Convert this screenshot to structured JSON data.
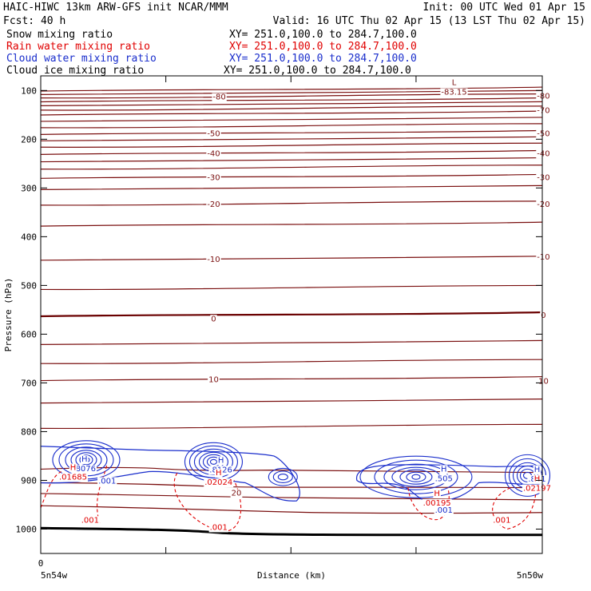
{
  "header": {
    "line1_left": "HAIC-HIWC 13km ARW-GFS init    NCAR/MMM",
    "line1_right": "Init: 00 UTC Wed 01 Apr 15",
    "line2_left": "Fcst:   40 h",
    "line2_right": "Valid: 16 UTC Thu 02 Apr 15 (13 LST Thu 02 Apr 15)"
  },
  "legend": [
    {
      "name": "Snow mixing ratio",
      "xy": "XY= 251.0,100.0 to 284.7,100.0",
      "color": "#000000"
    },
    {
      "name": "Rain water mixing ratio",
      "xy": "XY= 251.0,100.0 to 284.7,100.0",
      "color": "#e00000"
    },
    {
      "name": "Cloud water mixing ratio",
      "xy": "XY= 251.0,100.0 to 284.7,100.0",
      "color": "#1a2ecc"
    },
    {
      "name": "Cloud ice mixing ratio",
      "xy": "XY= 251.0,100.0 to 284.7,100.0",
      "color": "#000000"
    }
  ],
  "colors": {
    "temperature": "#7a0f0f",
    "zero_isotherm": "#6a0000",
    "cloud": "#1a2ecc",
    "rain": "#e00000",
    "ground": "#000000"
  },
  "chart_data": {
    "type": "contour",
    "ylabel": "Pressure (hPa)",
    "xlabel": "Distance (km)",
    "xlim": [
      0,
      441
    ],
    "ylim": [
      1050,
      70
    ],
    "y_ticks": [
      100,
      200,
      300,
      400,
      500,
      600,
      700,
      800,
      900,
      1000
    ],
    "x_ticks": [
      0,
      110,
      220,
      330,
      441
    ],
    "x_start_label": "0",
    "x_left_label": "5n54w",
    "x_right_label": "5n50w",
    "isotherm_labels": [
      {
        "text": "-80",
        "x": 150,
        "p": 112
      },
      {
        "text": "-80",
        "x": 435,
        "p": 110
      },
      {
        "text": "-70",
        "x": 435,
        "p": 140
      },
      {
        "text": "-50",
        "x": 145,
        "p": 187
      },
      {
        "text": "-50",
        "x": 435,
        "p": 187
      },
      {
        "text": "-40",
        "x": 145,
        "p": 228
      },
      {
        "text": "-40",
        "x": 435,
        "p": 228
      },
      {
        "text": "-30",
        "x": 145,
        "p": 277
      },
      {
        "text": "-30",
        "x": 435,
        "p": 277
      },
      {
        "text": "-20",
        "x": 145,
        "p": 332
      },
      {
        "text": "-20",
        "x": 435,
        "p": 332
      },
      {
        "text": "-10",
        "x": 145,
        "p": 445
      },
      {
        "text": "-10",
        "x": 435,
        "p": 440
      },
      {
        "text": "0",
        "x": 145,
        "p": 567
      },
      {
        "text": "0",
        "x": 435,
        "p": 560
      },
      {
        "text": "10",
        "x": 145,
        "p": 692
      },
      {
        "text": "10",
        "x": 435,
        "p": 695
      },
      {
        "text": "20",
        "x": 165,
        "p": 925
      }
    ],
    "extrema": [
      {
        "text": "L",
        "value": "-83.15",
        "x": 355,
        "p": 92
      },
      {
        "text": "H",
        "value": ".8076",
        "x": 30,
        "p": 865,
        "series": "Cloud water mixing ratio"
      },
      {
        "text": "H",
        "value": ".8126",
        "x": 150,
        "p": 867,
        "series": "Cloud water mixing ratio"
      },
      {
        "text": "H",
        "value": ".505",
        "x": 346,
        "p": 885,
        "series": "Cloud water mixing ratio"
      },
      {
        "text": "H",
        "value": ".821",
        "x": 428,
        "p": 886,
        "series": "Cloud water mixing ratio"
      },
      {
        "text": "H",
        "value": ".01685",
        "x": 20,
        "p": 882,
        "series": "Rain water mixing ratio"
      },
      {
        "text": "H",
        "value": ".02024",
        "x": 148,
        "p": 893,
        "series": "Rain water mixing ratio"
      },
      {
        "text": "H",
        "value": ".00195",
        "x": 340,
        "p": 935,
        "series": "Rain water mixing ratio"
      },
      {
        "text": "H",
        "value": ".02197",
        "x": 428,
        "p": 905,
        "series": "Rain water mixing ratio"
      }
    ],
    "contour_labels": [
      {
        "text": ".001",
        "x": 50,
        "p": 900,
        "series": "Cloud water mixing ratio"
      },
      {
        "text": ".001",
        "x": 346,
        "p": 960,
        "series": "Cloud water mixing ratio"
      },
      {
        "text": ".001",
        "x": 35,
        "p": 980,
        "series": "Rain water mixing ratio"
      },
      {
        "text": ".001",
        "x": 148,
        "p": 995,
        "series": "Rain water mixing ratio"
      },
      {
        "text": ".001",
        "x": 397,
        "p": 980,
        "series": "Rain water mixing ratio"
      }
    ]
  }
}
